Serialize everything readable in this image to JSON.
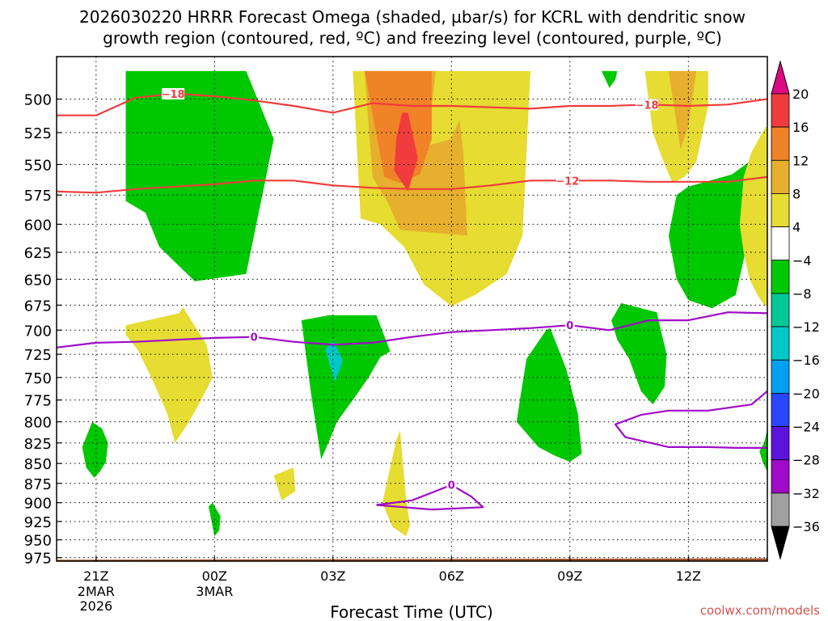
{
  "title_line1": "2026030220 HRRR Forecast Omega (shaded, µbar/s) for KCRL with dendritic snow",
  "title_line2": "growth region (contoured, red, ºC) and freezing level (contoured, purple, ºC)",
  "chart_data": {
    "type": "heatmap",
    "title": "2026030220 HRRR Forecast Omega (shaded, µbar/s) for KCRL with dendritic snow growth region (contoured, red, ºC) and freezing level (contoured, purple, ºC)",
    "xlabel": "Forecast Time (UTC)",
    "ylabel": "",
    "xlim_hours": [
      -1,
      17
    ],
    "ylim_hPa": [
      980,
      470
    ],
    "x_ticks": [
      {
        "hour": 0,
        "label": "21Z",
        "sub1": "2MAR",
        "sub2": "2026"
      },
      {
        "hour": 3,
        "label": "00Z",
        "sub1": "3MAR",
        "sub2": ""
      },
      {
        "hour": 6,
        "label": "03Z",
        "sub1": "",
        "sub2": ""
      },
      {
        "hour": 9,
        "label": "06Z",
        "sub1": "",
        "sub2": ""
      },
      {
        "hour": 12,
        "label": "09Z",
        "sub1": "",
        "sub2": ""
      },
      {
        "hour": 15,
        "label": "12Z",
        "sub1": "",
        "sub2": ""
      }
    ],
    "y_ticks": [
      500,
      525,
      550,
      575,
      600,
      625,
      650,
      675,
      700,
      725,
      750,
      775,
      800,
      825,
      850,
      875,
      900,
      925,
      950,
      975
    ],
    "grid": true,
    "colorbar": {
      "labels": [
        "20",
        "16",
        "12",
        "8",
        "4",
        "−4",
        "−8",
        "−12",
        "−16",
        "−20",
        "−24",
        "−28",
        "−32",
        "−36"
      ],
      "bins": [
        {
          "lo": 16,
          "hi": 20,
          "color": "#f03c3c"
        },
        {
          "lo": 12,
          "hi": 16,
          "color": "#f08228"
        },
        {
          "lo": 8,
          "hi": 12,
          "color": "#e6af2d"
        },
        {
          "lo": 4,
          "hi": 8,
          "color": "#e6dc32"
        },
        {
          "lo": -4,
          "hi": 4,
          "color": "#ffffff"
        },
        {
          "lo": -8,
          "hi": -4,
          "color": "#00c800"
        },
        {
          "lo": -12,
          "hi": -8,
          "color": "#00c896"
        },
        {
          "lo": -16,
          "hi": -12,
          "color": "#00c8c8"
        },
        {
          "lo": -20,
          "hi": -16,
          "color": "#00a0f0"
        },
        {
          "lo": -24,
          "hi": -20,
          "color": "#2846ff"
        },
        {
          "lo": -28,
          "hi": -24,
          "color": "#5a14dc"
        },
        {
          "lo": -32,
          "hi": -28,
          "color": "#a00ac8"
        },
        {
          "lo": -36,
          "hi": -32,
          "color": "#a0a0a0"
        }
      ],
      "over_color": "#dc0a82",
      "under_color": "#000000"
    },
    "contours": [
      {
        "name": "dgz -18C",
        "label": "−18",
        "color": "#f03c3c",
        "hours": [
          -1,
          0,
          1,
          2,
          3,
          4,
          5,
          6,
          7,
          8,
          9,
          10,
          11,
          12,
          13,
          14,
          15,
          16,
          17
        ],
        "hPa": [
          512,
          512,
          499,
          496,
          498,
          501,
          505,
          510,
          503,
          505,
          505,
          506,
          507,
          505,
          505,
          504,
          505,
          504,
          500
        ],
        "label_at_hours": [
          1.95,
          13.95
        ]
      },
      {
        "name": "dgz -12C",
        "label": "−12",
        "color": "#f03c3c",
        "hours": [
          -1,
          0,
          1,
          2,
          3,
          4,
          5,
          6,
          7,
          8,
          9,
          10,
          11,
          12,
          13,
          14,
          15,
          16,
          17
        ],
        "hPa": [
          572,
          573,
          570,
          568,
          566,
          563,
          563,
          567,
          569,
          570,
          570,
          567,
          563,
          563,
          563,
          564,
          564,
          564,
          560
        ],
        "label_at_hours": [
          12
        ],
        "label_x_offset": -3
      },
      {
        "name": "freezing level 0C",
        "label": "0",
        "color": "#a00ac8",
        "hours": [
          -1,
          0,
          1,
          2,
          3,
          4,
          5,
          6,
          7,
          8,
          9,
          10,
          11,
          12,
          13,
          14,
          15,
          16,
          17
        ],
        "hPa": [
          718,
          713,
          712,
          710,
          708,
          707,
          712,
          715,
          713,
          707,
          702,
          700,
          698,
          695,
          700,
          690,
          690,
          682,
          683
        ],
        "label_at_hours": [
          4,
          12
        ]
      },
      {
        "name": "0C lower loop",
        "label": "",
        "color": "#a00ac8",
        "hours": [
          17,
          16.6,
          15.5,
          14.5,
          13.8,
          13.15,
          13.4,
          14.5,
          15.5,
          16.2,
          17
        ],
        "hPa": [
          765,
          780,
          787,
          787,
          792,
          803,
          818,
          830,
          830,
          831,
          831
        ],
        "label_at_hours": []
      },
      {
        "name": "0C near-surface loop",
        "label": "0",
        "color": "#a00ac8",
        "hours": [
          7.1,
          8,
          8.7,
          9,
          9.5,
          9.8,
          8.5,
          7.1
        ],
        "hPa": [
          903,
          897,
          883,
          877,
          892,
          906,
          909,
          903
        ],
        "label_at_hours": [
          9
        ]
      }
    ],
    "omega_regions": [
      {
        "label": "ascent core",
        "color": "#00c800",
        "hours": [
          0.75,
          1,
          2,
          3,
          3.8,
          4.5,
          3.8,
          2.5,
          1.6,
          1.25,
          1,
          0.75
        ],
        "hPa": [
          480,
          480,
          480,
          480,
          480,
          530,
          645,
          652,
          620,
          590,
          585,
          580
        ]
      },
      {
        "label": "ascent",
        "color": "#e6dc32",
        "hours": [
          6.5,
          11,
          10.8,
          10.4,
          9.6,
          9,
          8.3,
          7.8,
          7.2,
          6.7,
          6.5
        ],
        "hPa": [
          480,
          480,
          610,
          645,
          665,
          676,
          655,
          620,
          600,
          595,
          480
        ]
      },
      {
        "label": "ascent",
        "color": "#e6af2d",
        "hours": [
          6.8,
          8.6,
          8.4,
          9,
          9.2,
          9.3,
          9.4,
          7.7,
          7.4,
          7.0,
          6.8
        ],
        "hPa": [
          480,
          480,
          535,
          530,
          515,
          540,
          610,
          605,
          582,
          560,
          480
        ]
      },
      {
        "label": "ascent",
        "color": "#f08228",
        "hours": [
          6.8,
          8.5,
          8.5,
          8.2,
          7.7,
          7.3,
          6.8
        ],
        "hPa": [
          480,
          480,
          530,
          558,
          565,
          560,
          480
        ]
      },
      {
        "label": "ascent max",
        "color": "#f03c3c",
        "hours": [
          7.75,
          7.9,
          8.15,
          7.9,
          7.55,
          7.6,
          7.75
        ],
        "hPa": [
          510,
          510,
          545,
          572,
          555,
          530,
          510
        ]
      },
      {
        "label": "ascent",
        "color": "#e6dc32",
        "hours": [
          13.9,
          15.5,
          15.5,
          15.2,
          14.9,
          14.6,
          14.4,
          14.1,
          13.9
        ],
        "hPa": [
          480,
          480,
          505,
          548,
          560,
          565,
          550,
          525,
          480
        ]
      },
      {
        "label": "ascent",
        "color": "#e6af2d",
        "hours": [
          14.5,
          15.2,
          15.0,
          14.8,
          14.5
        ],
        "hPa": [
          480,
          480,
          520,
          538,
          480
        ]
      },
      {
        "label": "descent",
        "color": "#00c800",
        "hours": [
          12.8,
          13.2,
          13.15,
          13.0,
          12.8
        ],
        "hPa": [
          480,
          480,
          486,
          492,
          480
        ]
      },
      {
        "label": "descent",
        "color": "#00c800",
        "hours": [
          16.1,
          16.8,
          16.6,
          16.2,
          15.6,
          15.0,
          14.7,
          14.6,
          14.5,
          14.7,
          15.0,
          16.1
        ],
        "hPa": [
          558,
          542,
          600,
          665,
          678,
          670,
          650,
          630,
          610,
          575,
          568,
          558
        ]
      },
      {
        "label": "ascent",
        "color": "#e6dc32",
        "hours": [
          17,
          16.95,
          16.6,
          16.4,
          16.3,
          16.4,
          16.55,
          16.75,
          16.92,
          17
        ],
        "hPa": [
          520,
          521,
          540,
          560,
          600,
          625,
          650,
          665,
          675,
          676
        ]
      },
      {
        "label": "descent",
        "color": "#00c800",
        "hours": [
          17,
          16.92,
          16.8,
          16.88,
          17
        ],
        "hPa": [
          808,
          825,
          835,
          848,
          860
        ]
      },
      {
        "label": "ascent",
        "color": "#e6dc32",
        "hours": [
          0.75,
          2.1,
          2.2,
          2.8,
          2.95,
          2.6,
          2.35,
          2.0,
          1.8,
          1.4,
          1.05,
          0.75
        ],
        "hPa": [
          695,
          683,
          677,
          715,
          750,
          780,
          800,
          825,
          790,
          750,
          720,
          705
        ]
      },
      {
        "label": "descent",
        "color": "#00c800",
        "hours": [
          -0.35,
          -0.1,
          0.15,
          0.3,
          0.25,
          0.1,
          -0.05,
          -0.25,
          -0.35
        ],
        "hPa": [
          830,
          800,
          808,
          825,
          848,
          860,
          868,
          855,
          830
        ]
      },
      {
        "label": "descent",
        "color": "#00c800",
        "hours": [
          2.85,
          2.95,
          3.15,
          3.12,
          3.0,
          2.85
        ],
        "hPa": [
          905,
          900,
          918,
          937,
          945,
          905
        ]
      },
      {
        "label": "ascent",
        "color": "#e6dc32",
        "hours": [
          4.5,
          5.0,
          5.05,
          4.7,
          4.5
        ],
        "hPa": [
          865,
          855,
          885,
          897,
          865
        ]
      },
      {
        "label": "ascent",
        "color": "#e6dc32",
        "hours": [
          7.25,
          7.6,
          7.7,
          7.85,
          7.95,
          7.85,
          7.5,
          7.25
        ],
        "hPa": [
          900,
          822,
          810,
          895,
          930,
          945,
          932,
          900
        ]
      },
      {
        "label": "descent",
        "color": "#00c800",
        "hours": [
          5.2,
          5.9,
          7.1,
          7.45,
          7.2,
          6.9,
          6.5,
          6.1,
          5.9,
          5.7,
          5.45,
          5.2
        ],
        "hPa": [
          690,
          685,
          685,
          722,
          728,
          750,
          775,
          800,
          823,
          845,
          770,
          690
        ]
      },
      {
        "label": "descent strong",
        "color": "#00c8c8",
        "hours": [
          5.8,
          6.0,
          6.25,
          6.05,
          5.8
        ],
        "hPa": [
          720,
          710,
          732,
          755,
          720
        ]
      },
      {
        "label": "descent",
        "color": "#00c800",
        "hours": [
          10.9,
          11.4,
          11.5,
          11.9,
          12.2,
          12.3,
          12.0,
          11.6,
          11.2,
          10.65,
          10.75,
          10.9
        ],
        "hPa": [
          730,
          700,
          698,
          740,
          790,
          838,
          848,
          840,
          830,
          800,
          770,
          730
        ]
      },
      {
        "label": "descent",
        "color": "#00c800",
        "hours": [
          13.3,
          14.2,
          14.3,
          14.45,
          14.4,
          14.1,
          13.8,
          13.5,
          13.2,
          13.05,
          13.3
        ],
        "hPa": [
          673,
          682,
          700,
          725,
          760,
          780,
          765,
          730,
          710,
          690,
          673
        ]
      }
    ],
    "surface": {
      "label": "ground",
      "color": "#a05028",
      "hours": [
        -1,
        17
      ],
      "hPa_top": [
        978,
        976
      ]
    }
  },
  "credit": "coolwx.com/models"
}
